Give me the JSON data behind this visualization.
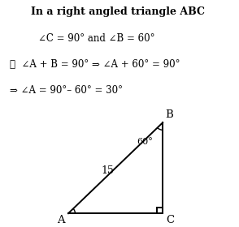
{
  "title_lines": [
    "In a right angled triangle ABC",
    "∠C = 90° and ∠B = 60°",
    "∴  ∠A + B = 90° ⇒ ∠A + 60° = 90°",
    "⇒ ∠A = 90°– 60° = 30°"
  ],
  "A": [
    0.05,
    0.12
  ],
  "B": [
    0.88,
    0.92
  ],
  "C": [
    0.88,
    0.12
  ],
  "label_A": "A",
  "label_B": "B",
  "label_C": "C",
  "hyp_label": "15",
  "angle_B_label": "60°",
  "bg_color": "#ffffff",
  "line_color": "#000000",
  "text_color": "#000000",
  "font_size_title": 9.0,
  "font_size_labels": 9.5,
  "font_size_angle": 8.0,
  "font_size_hyp": 9.0
}
